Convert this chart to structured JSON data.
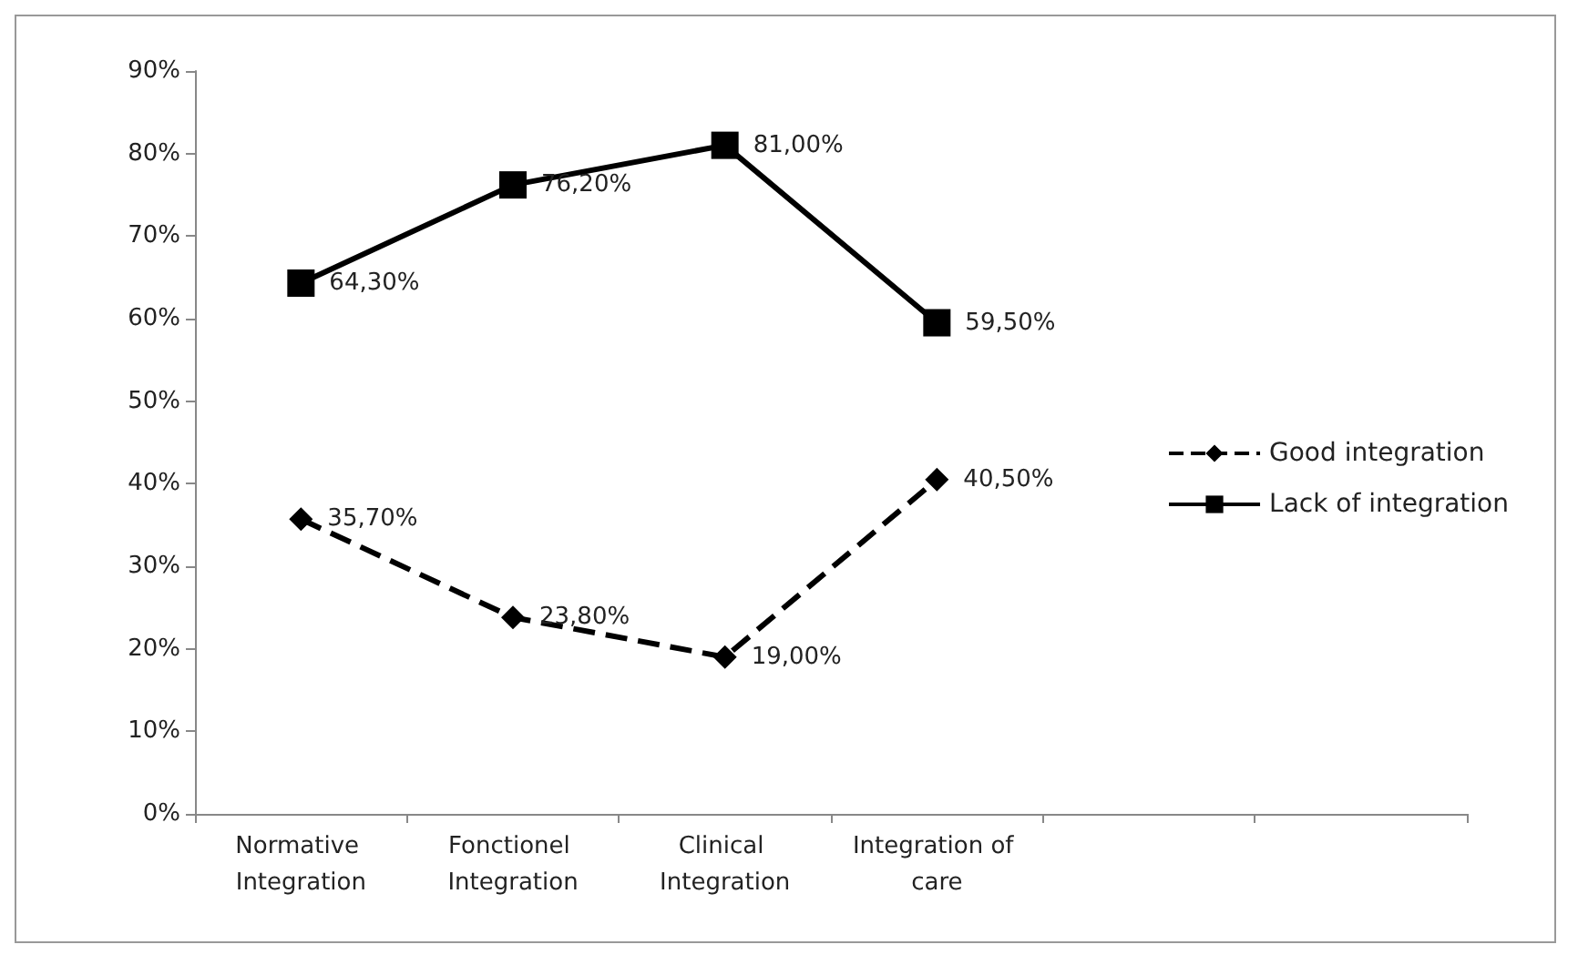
{
  "chart_data": {
    "type": "line",
    "categories": [
      "Normative Integration",
      "Fonctionel Integration",
      "Clinical Integration",
      "Integration of care",
      null,
      null
    ],
    "series": [
      {
        "name": "Good integration",
        "color": "#000000",
        "marker": "diamond",
        "line_style": "dashed",
        "values": [
          35.7,
          23.8,
          19.0,
          40.5,
          null,
          null
        ],
        "value_labels": [
          "35,70%",
          "23,80%",
          "19,00%",
          "40,50%",
          null,
          null
        ]
      },
      {
        "name": "Lack of integration",
        "color": "#000000",
        "marker": "square",
        "line_style": "solid",
        "values": [
          64.3,
          76.2,
          81.0,
          59.5,
          null,
          null
        ],
        "value_labels": [
          "64,30%",
          "76,20%",
          "81,00%",
          "59,50%",
          null,
          null
        ]
      }
    ],
    "ylim": [
      0,
      90
    ],
    "yticks": [
      {
        "value": 0,
        "label": "0%"
      },
      {
        "value": 10,
        "label": "10%"
      },
      {
        "value": 20,
        "label": "20%"
      },
      {
        "value": 30,
        "label": "30%"
      },
      {
        "value": 40,
        "label": "40%"
      },
      {
        "value": 50,
        "label": "50%"
      },
      {
        "value": 60,
        "label": "60%"
      },
      {
        "value": 70,
        "label": "70%"
      },
      {
        "value": 80,
        "label": "80%"
      },
      {
        "value": 90,
        "label": "90%"
      }
    ],
    "grid": false,
    "legend": "right"
  }
}
